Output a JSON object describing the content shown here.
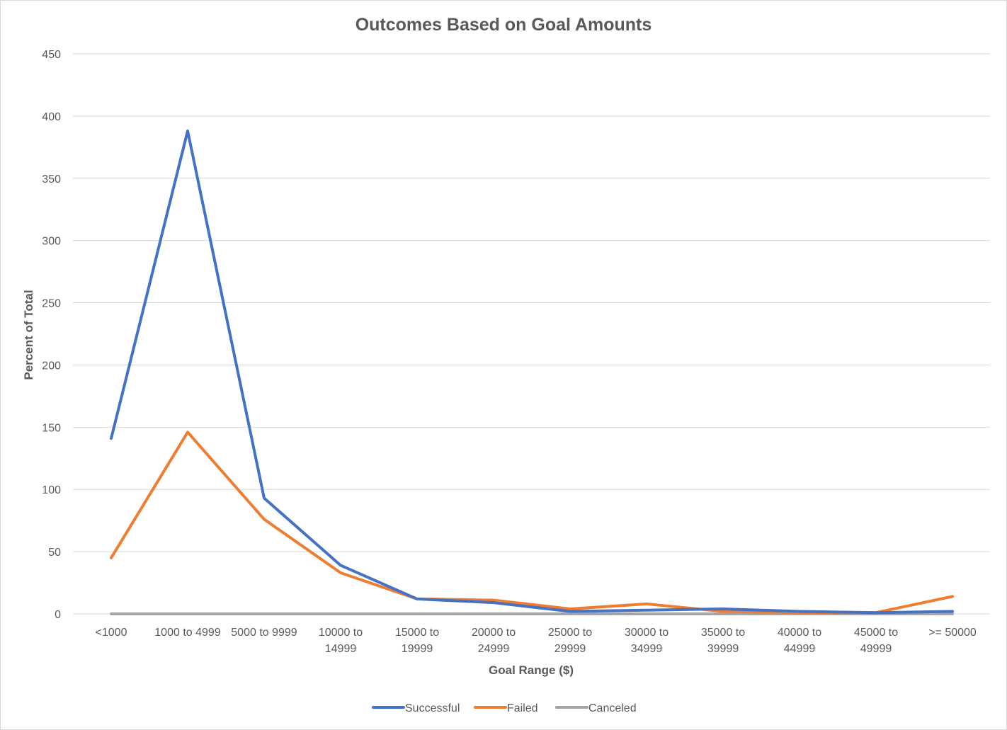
{
  "chart_data": {
    "type": "line",
    "title": "Outcomes Based on Goal Amounts",
    "xlabel": "Goal Range ($)",
    "ylabel": "Percent of Total",
    "categories": [
      "<1000",
      "1000 to 4999",
      "5000 to 9999",
      "10000 to 14999",
      "15000 to 19999",
      "20000 to 24999",
      "25000 to 29999",
      "30000 to 34999",
      "35000 to 39999",
      "40000 to 44999",
      "45000 to 49999",
      ">= 50000"
    ],
    "category_label_lines": [
      [
        "<1000"
      ],
      [
        "1000 to 4999"
      ],
      [
        "5000 to 9999"
      ],
      [
        "10000 to",
        "14999"
      ],
      [
        "15000 to",
        "19999"
      ],
      [
        "20000 to",
        "24999"
      ],
      [
        "25000 to",
        "29999"
      ],
      [
        "30000 to",
        "34999"
      ],
      [
        "35000 to",
        "39999"
      ],
      [
        "40000 to",
        "44999"
      ],
      [
        "45000 to",
        "49999"
      ],
      [
        ">= 50000"
      ]
    ],
    "ylim": [
      0,
      450
    ],
    "yticks": [
      0,
      50,
      100,
      150,
      200,
      250,
      300,
      350,
      400,
      450
    ],
    "grid": true,
    "legend_position": "bottom",
    "series": [
      {
        "name": "Successful",
        "color": "#4472c4",
        "values": [
          141,
          388,
          93,
          39,
          12,
          9,
          2,
          3,
          4,
          2,
          1,
          2
        ]
      },
      {
        "name": "Failed",
        "color": "#ed7d31",
        "values": [
          45,
          146,
          76,
          33,
          12,
          11,
          4,
          8,
          2,
          1,
          1,
          14
        ]
      },
      {
        "name": "Canceled",
        "color": "#a5a5a5",
        "values": [
          0,
          0,
          0,
          0,
          0,
          0,
          0,
          0,
          0,
          0,
          0,
          0
        ]
      }
    ]
  },
  "colors": {
    "gridline": "#d9d9d9",
    "text": "#595959"
  }
}
